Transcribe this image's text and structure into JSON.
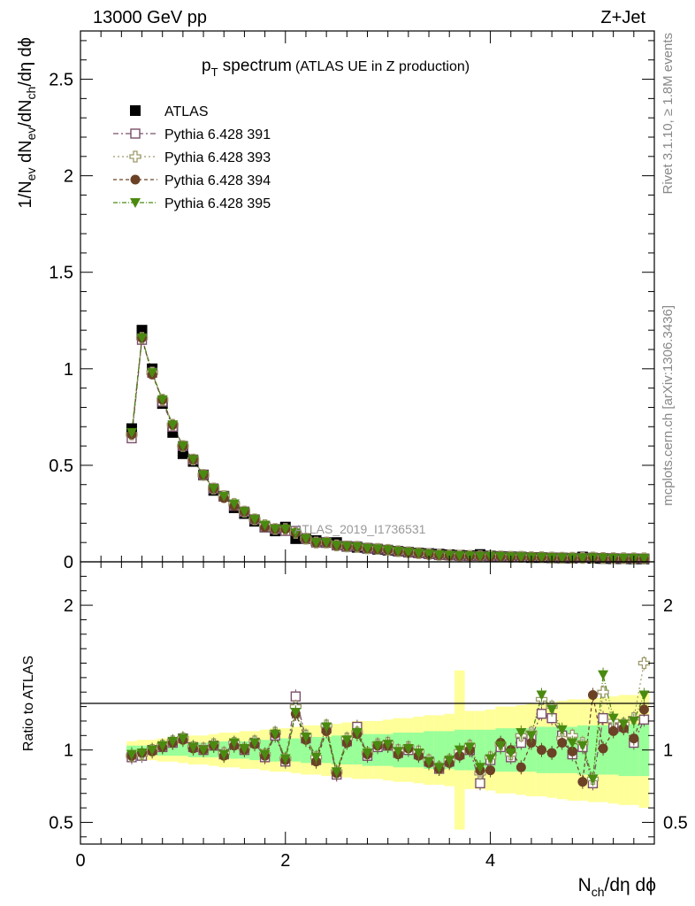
{
  "header": {
    "left": "13000 GeV pp",
    "right": "Z+Jet"
  },
  "title": {
    "main": "p",
    "sub": "T",
    "rest": " spectrum",
    "note": "(ATLAS UE in Z production)"
  },
  "side_labels": {
    "rivet": "Rivet 3.1.10, ≥ 1.8M events",
    "mcplots": "mcplots.cern.ch [arXiv:1306.3436]"
  },
  "watermark": "ATLAS_2019_I1736531",
  "colors": {
    "atlas": "#000000",
    "p391": "#7a4f6a",
    "p393": "#9d9a6a",
    "p394": "#6b4226",
    "p395": "#4a8a10",
    "band_yellow": "#ffff99",
    "band_green": "#99ff99"
  },
  "chart_data": [
    {
      "type": "scatter",
      "panel": "main",
      "ylabel": {
        "a": "1/N",
        "a_sub": "ev",
        "b": " dN",
        "b_sub": "ev",
        "c": "/dN",
        "c_sub": "ch",
        "d": "/dη dϕ"
      },
      "xlim": [
        0,
        5.6
      ],
      "ylim": [
        0,
        2.75
      ],
      "yticks": [
        0,
        0.5,
        1,
        1.5,
        2,
        2.5
      ],
      "ytick_labels": [
        "0",
        "0.5",
        "1",
        "1.5",
        "2",
        "2.5"
      ],
      "x": [
        0.5,
        0.6,
        0.7,
        0.8,
        0.9,
        1.0,
        1.1,
        1.2,
        1.3,
        1.4,
        1.5,
        1.6,
        1.7,
        1.8,
        1.9,
        2.0,
        2.1,
        2.2,
        2.3,
        2.4,
        2.5,
        2.6,
        2.7,
        2.8,
        2.9,
        3.0,
        3.1,
        3.2,
        3.3,
        3.4,
        3.5,
        3.6,
        3.7,
        3.8,
        3.9,
        4.0,
        4.1,
        4.2,
        4.3,
        4.4,
        4.5,
        4.6,
        4.7,
        4.8,
        4.9,
        5.0,
        5.1,
        5.2,
        5.3,
        5.4,
        5.5
      ],
      "legend": {
        "placement": "top-left",
        "entries": [
          "ATLAS",
          "Pythia 6.428 391",
          "Pythia 6.428 393",
          "Pythia 6.428 394",
          "Pythia 6.428 395"
        ]
      },
      "series": [
        {
          "name": "ATLAS",
          "marker": "square-filled",
          "values": [
            0.69,
            1.2,
            1.0,
            0.82,
            0.67,
            0.56,
            0.52,
            0.45,
            0.37,
            0.34,
            0.28,
            0.25,
            0.21,
            0.18,
            0.16,
            0.18,
            0.12,
            0.12,
            0.11,
            0.1,
            0.1,
            0.08,
            0.075,
            0.07,
            0.065,
            0.06,
            0.055,
            0.05,
            0.046,
            0.043,
            0.04,
            0.037,
            0.034,
            0.032,
            0.038,
            0.03,
            0.028,
            0.026,
            0.025,
            0.022,
            0.022,
            0.021,
            0.02,
            0.019,
            0.025,
            0.018,
            0.017,
            0.016,
            0.016,
            0.015,
            0.015
          ]
        },
        {
          "name": "Pythia 6.428 391",
          "marker": "square-open",
          "values": [
            0.64,
            1.15,
            0.98,
            0.83,
            0.7,
            0.6,
            0.53,
            0.45,
            0.38,
            0.34,
            0.29,
            0.26,
            0.22,
            0.18,
            0.17,
            0.16,
            0.16,
            0.12,
            0.1,
            0.1,
            0.085,
            0.08,
            0.08,
            0.07,
            0.068,
            0.062,
            0.055,
            0.05,
            0.045,
            0.04,
            0.035,
            0.033,
            0.031,
            0.03,
            0.03,
            0.028,
            0.028,
            0.025,
            0.025,
            0.024,
            0.024,
            0.022,
            0.021,
            0.02,
            0.02,
            0.022,
            0.02,
            0.019,
            0.018,
            0.018,
            0.017
          ]
        },
        {
          "name": "Pythia 6.428 393",
          "marker": "cross-open",
          "values": [
            0.66,
            1.16,
            0.98,
            0.84,
            0.71,
            0.6,
            0.53,
            0.45,
            0.38,
            0.34,
            0.3,
            0.26,
            0.22,
            0.19,
            0.17,
            0.17,
            0.15,
            0.12,
            0.1,
            0.1,
            0.085,
            0.08,
            0.078,
            0.07,
            0.067,
            0.062,
            0.055,
            0.05,
            0.045,
            0.04,
            0.036,
            0.034,
            0.032,
            0.031,
            0.029,
            0.03,
            0.028,
            0.026,
            0.026,
            0.024,
            0.024,
            0.022,
            0.021,
            0.021,
            0.02,
            0.022,
            0.02,
            0.019,
            0.019,
            0.018,
            0.018
          ]
        },
        {
          "name": "Pythia 6.428 394",
          "marker": "circle-filled",
          "values": [
            0.66,
            1.16,
            0.97,
            0.84,
            0.71,
            0.6,
            0.53,
            0.45,
            0.38,
            0.33,
            0.29,
            0.26,
            0.22,
            0.18,
            0.17,
            0.17,
            0.15,
            0.12,
            0.1,
            0.1,
            0.085,
            0.08,
            0.078,
            0.07,
            0.066,
            0.062,
            0.055,
            0.05,
            0.045,
            0.04,
            0.035,
            0.033,
            0.031,
            0.03,
            0.03,
            0.028,
            0.028,
            0.025,
            0.025,
            0.024,
            0.024,
            0.022,
            0.021,
            0.02,
            0.02,
            0.022,
            0.02,
            0.019,
            0.018,
            0.018,
            0.017
          ]
        },
        {
          "name": "Pythia 6.428 395",
          "marker": "triangle-down-filled",
          "values": [
            0.67,
            1.16,
            0.98,
            0.84,
            0.71,
            0.6,
            0.53,
            0.45,
            0.38,
            0.34,
            0.3,
            0.26,
            0.22,
            0.19,
            0.17,
            0.17,
            0.15,
            0.12,
            0.1,
            0.1,
            0.085,
            0.08,
            0.078,
            0.07,
            0.067,
            0.062,
            0.055,
            0.05,
            0.045,
            0.04,
            0.036,
            0.034,
            0.032,
            0.031,
            0.029,
            0.03,
            0.028,
            0.026,
            0.026,
            0.024,
            0.024,
            0.022,
            0.021,
            0.021,
            0.02,
            0.022,
            0.02,
            0.019,
            0.019,
            0.018,
            0.018
          ]
        }
      ]
    },
    {
      "type": "scatter",
      "panel": "ratio",
      "xlabel": {
        "a": "N",
        "a_sub": "ch",
        "b": "/dη dϕ"
      },
      "ylabel": "Ratio to ATLAS",
      "xlim": [
        0,
        5.6
      ],
      "ylim": [
        0.35,
        2.3
      ],
      "xticks": [
        0,
        2,
        4
      ],
      "xtick_labels": [
        "0",
        "2",
        "4"
      ],
      "yticks": [
        0.5,
        1,
        2
      ],
      "ytick_labels": [
        "0.5",
        "1",
        "2"
      ],
      "reference_line": 1,
      "x": [
        0.5,
        0.6,
        0.7,
        0.8,
        0.9,
        1.0,
        1.1,
        1.2,
        1.3,
        1.4,
        1.5,
        1.6,
        1.7,
        1.8,
        1.9,
        2.0,
        2.1,
        2.2,
        2.3,
        2.4,
        2.5,
        2.6,
        2.7,
        2.8,
        2.9,
        3.0,
        3.1,
        3.2,
        3.3,
        3.4,
        3.5,
        3.6,
        3.7,
        3.8,
        3.9,
        4.0,
        4.1,
        4.2,
        4.3,
        4.4,
        4.5,
        4.6,
        4.7,
        4.8,
        4.9,
        5.0,
        5.1,
        5.2,
        5.3,
        5.4,
        5.5
      ],
      "band_green_halfwidth": [
        0.03,
        0.03,
        0.03,
        0.04,
        0.04,
        0.04,
        0.05,
        0.05,
        0.05,
        0.06,
        0.06,
        0.06,
        0.07,
        0.07,
        0.08,
        0.08,
        0.08,
        0.09,
        0.09,
        0.09,
        0.1,
        0.1,
        0.1,
        0.11,
        0.11,
        0.11,
        0.12,
        0.12,
        0.12,
        0.13,
        0.13,
        0.13,
        0.14,
        0.14,
        0.14,
        0.14,
        0.15,
        0.15,
        0.15,
        0.15,
        0.16,
        0.16,
        0.16,
        0.16,
        0.17,
        0.17,
        0.17,
        0.17,
        0.18,
        0.18,
        0.18
      ],
      "band_yellow_halfwidth": [
        0.06,
        0.07,
        0.07,
        0.08,
        0.08,
        0.09,
        0.1,
        0.1,
        0.11,
        0.12,
        0.12,
        0.13,
        0.13,
        0.14,
        0.15,
        0.15,
        0.16,
        0.17,
        0.17,
        0.18,
        0.18,
        0.19,
        0.2,
        0.2,
        0.2,
        0.21,
        0.22,
        0.22,
        0.23,
        0.24,
        0.24,
        0.25,
        0.55,
        0.27,
        0.27,
        0.28,
        0.3,
        0.3,
        0.31,
        0.32,
        0.32,
        0.33,
        0.34,
        0.35,
        0.35,
        0.36,
        0.36,
        0.37,
        0.38,
        0.38,
        0.4
      ],
      "series": [
        {
          "name": "Pythia 6.428 391",
          "marker": "square-open",
          "values": [
            0.95,
            0.96,
            1.0,
            1.02,
            1.05,
            1.08,
            1.02,
            1.0,
            1.03,
            0.97,
            1.04,
            1.0,
            1.05,
            0.95,
            1.1,
            0.92,
            1.37,
            1.08,
            0.93,
            1.15,
            0.83,
            1.06,
            1.16,
            0.96,
            1.02,
            1.03,
            0.98,
            1.0,
            0.97,
            0.92,
            0.87,
            0.92,
            0.97,
            1.0,
            0.77,
            0.93,
            1.02,
            0.95,
            1.05,
            1.09,
            1.25,
            1.22,
            1.1,
            0.97,
            1.02,
            0.77,
            1.22,
            1.15,
            1.16,
            1.05,
            1.21
          ]
        },
        {
          "name": "Pythia 6.428 393",
          "marker": "cross-open",
          "values": [
            0.96,
            0.97,
            1.0,
            1.03,
            1.06,
            1.08,
            1.02,
            1.01,
            1.04,
            0.98,
            1.05,
            1.01,
            1.06,
            0.97,
            1.12,
            0.94,
            1.3,
            1.1,
            0.95,
            1.17,
            0.85,
            1.08,
            1.12,
            0.98,
            1.04,
            1.05,
            1.0,
            1.02,
            0.99,
            0.93,
            0.88,
            0.93,
            0.99,
            1.03,
            0.84,
            0.95,
            1.04,
            0.97,
            1.1,
            1.12,
            1.35,
            1.3,
            1.08,
            1.1,
            1.05,
            0.8,
            1.4,
            1.2,
            1.18,
            1.22,
            1.6
          ]
        },
        {
          "name": "Pythia 6.428 394",
          "marker": "circle-filled",
          "values": [
            0.96,
            0.98,
            0.99,
            1.02,
            1.05,
            1.07,
            1.01,
            1.0,
            1.03,
            0.96,
            1.03,
            1.0,
            1.04,
            0.96,
            1.11,
            0.93,
            1.25,
            1.07,
            0.92,
            1.13,
            0.84,
            1.05,
            1.11,
            0.97,
            1.03,
            1.03,
            0.97,
            1.01,
            0.96,
            0.91,
            0.87,
            0.91,
            0.96,
            1.0,
            0.86,
            0.86,
            1.05,
            1.0,
            0.88,
            1.05,
            1.0,
            0.98,
            1.05,
            0.99,
            0.78,
            1.38,
            1.01,
            1.13,
            1.15,
            1.08,
            1.28
          ]
        },
        {
          "name": "Pythia 6.428 395",
          "marker": "triangle-down-filled",
          "values": [
            0.97,
            0.98,
            1.0,
            1.03,
            1.06,
            1.08,
            1.02,
            1.0,
            1.03,
            0.97,
            1.05,
            1.01,
            1.05,
            0.97,
            1.11,
            0.94,
            1.26,
            1.09,
            0.95,
            1.16,
            0.85,
            1.07,
            1.12,
            0.98,
            1.03,
            1.04,
            0.99,
            1.01,
            0.98,
            0.92,
            0.88,
            0.93,
            1.0,
            1.02,
            0.88,
            0.94,
            1.03,
            0.98,
            1.12,
            1.1,
            1.38,
            1.28,
            1.14,
            1.05,
            1.03,
            0.8,
            1.52,
            1.22,
            1.18,
            1.2,
            1.38
          ]
        }
      ]
    }
  ]
}
